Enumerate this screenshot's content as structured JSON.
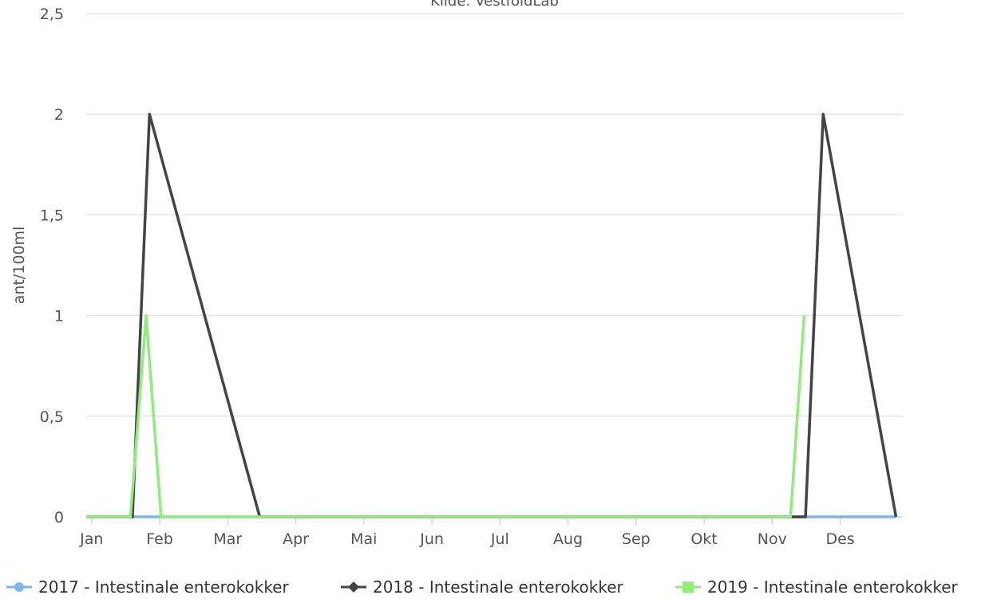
{
  "subtitle": "Kilde: VestfoldLab",
  "chart_data": {
    "type": "line",
    "ylabel": "ant/100ml",
    "xlabel": "",
    "ylim": [
      0,
      2.5
    ],
    "yticks": [
      "0",
      "0,5",
      "1",
      "1,5",
      "2",
      "2,5"
    ],
    "categories": [
      "Jan",
      "Feb",
      "Mar",
      "Apr",
      "Mai",
      "Jun",
      "Jul",
      "Aug",
      "Sep",
      "Okt",
      "Nov",
      "Des"
    ],
    "xlim": [
      0,
      12
    ],
    "grid": true,
    "legend_position": "bottom",
    "series": [
      {
        "name": "2017 - Intestinale enterokokker",
        "color": "#7cb5ec",
        "marker": "circle",
        "points": [
          [
            0,
            0
          ],
          [
            0.65,
            0
          ],
          [
            0.88,
            0
          ],
          [
            11.9,
            0
          ]
        ]
      },
      {
        "name": "2018 - Intestinale enterokokker",
        "color": "#434348",
        "marker": "diamond",
        "points": [
          [
            0,
            0
          ],
          [
            0.68,
            0
          ],
          [
            0.93,
            2
          ],
          [
            2.55,
            0
          ],
          [
            10.57,
            0
          ],
          [
            10.83,
            2
          ],
          [
            11.9,
            0
          ]
        ]
      },
      {
        "name": "2019 - Intestinale enterokokker",
        "color": "#90ed7d",
        "marker": "square",
        "points": [
          [
            0,
            0
          ],
          [
            0.65,
            0
          ],
          [
            0.88,
            1
          ],
          [
            1.1,
            0
          ],
          [
            10.35,
            0
          ],
          [
            10.55,
            1
          ]
        ]
      }
    ]
  }
}
